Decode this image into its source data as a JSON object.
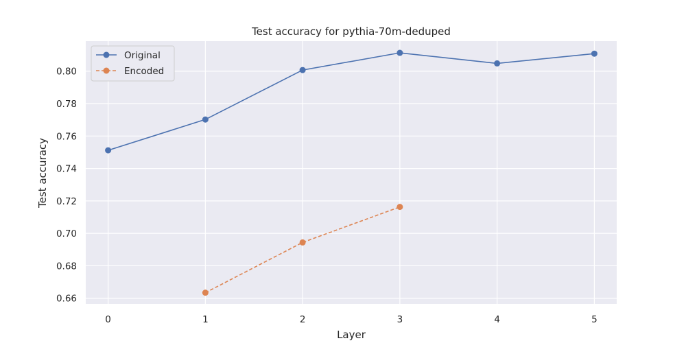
{
  "chart_data": {
    "type": "line",
    "title": "Test accuracy for pythia-70m-deduped",
    "xlabel": "Layer",
    "ylabel": "Test accuracy",
    "x_ticks": [
      "0",
      "1",
      "2",
      "3",
      "4",
      "5"
    ],
    "y_ticks": [
      "0.66",
      "0.68",
      "0.70",
      "0.72",
      "0.74",
      "0.76",
      "0.78",
      "0.80"
    ],
    "xlim": [
      -0.23,
      5.23
    ],
    "ylim": [
      0.6565,
      0.8185
    ],
    "grid": true,
    "legend_position": "top-left",
    "series": [
      {
        "name": "Original",
        "color": "#4c72b0",
        "line_style": "solid",
        "marker": "circle",
        "x": [
          0,
          1,
          2,
          3,
          4,
          5
        ],
        "y": [
          0.7512,
          0.7702,
          0.8007,
          0.8113,
          0.8048,
          0.8108
        ]
      },
      {
        "name": "Encoded",
        "color": "#dd8452",
        "line_style": "dashed",
        "marker": "circle",
        "x": [
          1,
          2,
          3
        ],
        "y": [
          0.6634,
          0.6944,
          0.7163
        ]
      }
    ]
  }
}
